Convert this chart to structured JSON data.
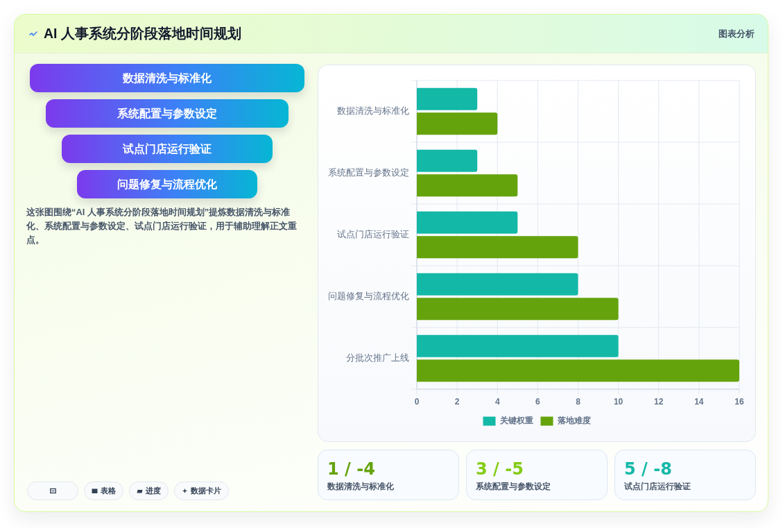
{
  "chart_data": [
    {
      "type": "other",
      "title": "AI 人事系统分阶段落地时间规划",
      "annotations": [
        "图表分析",
        "这张图围绕“AI 人事系统分阶段落地时间规划”提炼数据清洗与标准化、系统配置与参数设定、试点门店运行验证，用于辅助理解正文重点。"
      ],
      "categories": [
        "数据清洗与标准化",
        "系统配置与参数设定",
        "试点门店运行验证",
        "问题修复与流程优化"
      ]
    },
    {
      "type": "bar",
      "orientation": "horizontal",
      "categories": [
        "数据清洗与标准化",
        "系统配置与参数设定",
        "试点门店运行验证",
        "问题修复与流程优化",
        "分批次推广上线"
      ],
      "series": [
        {
          "name": "关键权重",
          "color": "#14b8a6",
          "values": [
            3,
            3,
            5,
            8,
            10
          ]
        },
        {
          "name": "落地难度",
          "color": "#65a30d",
          "values": [
            4,
            5,
            8,
            10,
            16
          ]
        }
      ],
      "xlim": [
        0,
        16
      ],
      "xticks": [
        0,
        2,
        4,
        6,
        8,
        10,
        12,
        14,
        16
      ],
      "grid": true,
      "legend": "bottom"
    },
    {
      "type": "other",
      "categories": [
        "数据清洗与标准化",
        "系统配置与参数设定",
        "试点门店运行验证"
      ],
      "value_labels": [
        "1 / -4",
        "3 / -5",
        "5 / -8"
      ]
    },
    {
      "type": "other",
      "categories": [
        null,
        "表格",
        "进度",
        "数据卡片"
      ]
    }
  ]
}
